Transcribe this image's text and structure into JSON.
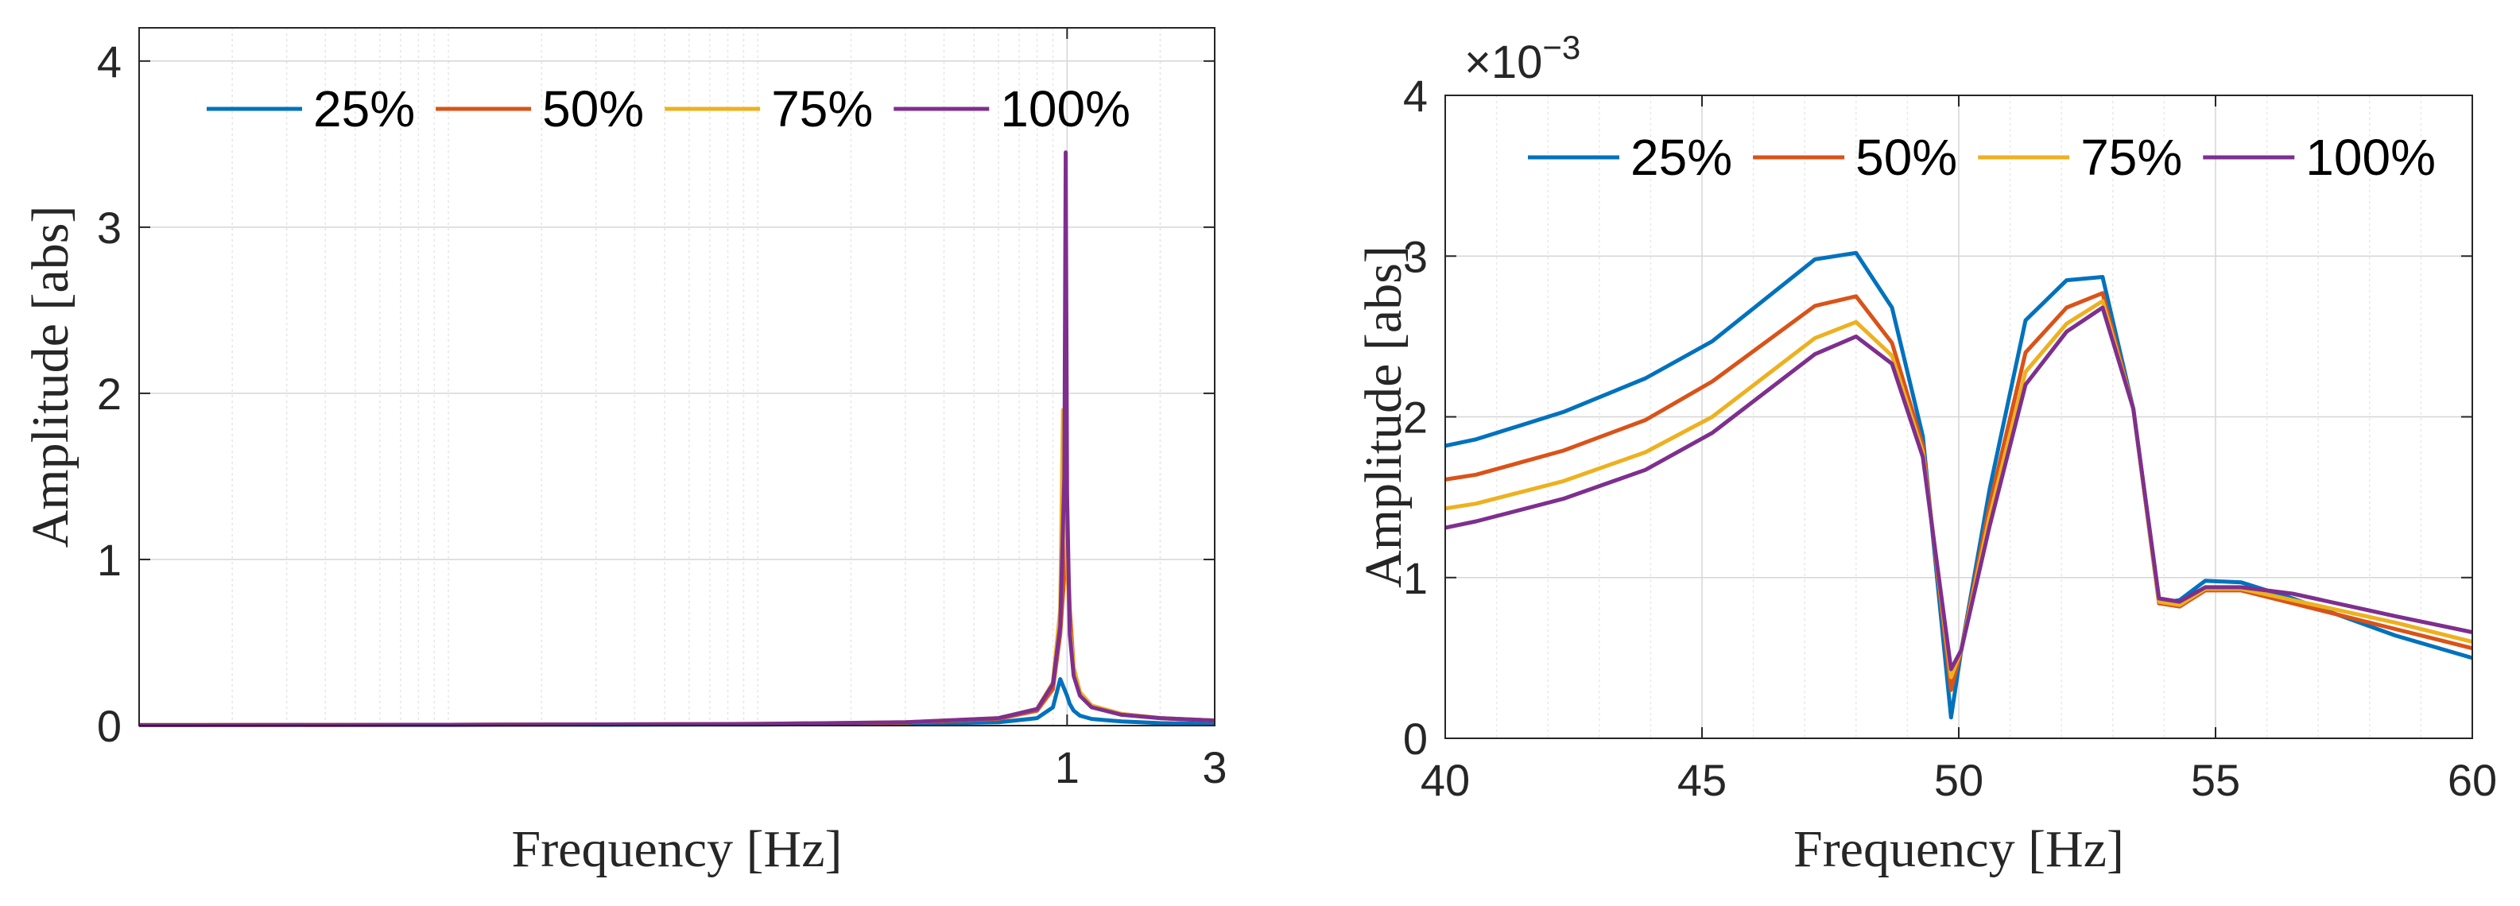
{
  "chart_data": [
    {
      "type": "line",
      "xscale": "log",
      "xlabel": "Frequency [Hz]",
      "ylabel": "Amplitude [abs]",
      "xlim": [
        0.001,
        3
      ],
      "ylim": [
        0,
        4.2
      ],
      "xticks": [
        1,
        3
      ],
      "xtick_labels": [
        "1",
        "3"
      ],
      "yticks": [
        0,
        1,
        2,
        3,
        4
      ],
      "ytick_labels": [
        "0",
        "1",
        "2",
        "3",
        "4"
      ],
      "grid": true,
      "legend_position": "top",
      "legend_orientation": "horizontal",
      "series": [
        {
          "name": "25%",
          "color": "#0072BD",
          "x": [
            0.001,
            0.01,
            0.1,
            0.3,
            0.6,
            0.8,
            0.9,
            0.95,
            1.0,
            1.02,
            1.05,
            1.1,
            1.2,
            1.5,
            2,
            3
          ],
          "y": [
            0.003,
            0.004,
            0.006,
            0.01,
            0.02,
            0.045,
            0.11,
            0.28,
            0.18,
            0.13,
            0.09,
            0.06,
            0.04,
            0.025,
            0.015,
            0.01
          ]
        },
        {
          "name": "50%",
          "color": "#D95319",
          "x": [
            0.001,
            0.01,
            0.1,
            0.3,
            0.6,
            0.8,
            0.9,
            0.95,
            1.0,
            1.02,
            1.05,
            1.1,
            1.2,
            1.5,
            2,
            3
          ],
          "y": [
            0.003,
            0.005,
            0.01,
            0.018,
            0.04,
            0.09,
            0.22,
            0.55,
            1.15,
            0.7,
            0.35,
            0.2,
            0.12,
            0.07,
            0.045,
            0.03
          ]
        },
        {
          "name": "75%",
          "color": "#EDB120",
          "x": [
            0.001,
            0.01,
            0.1,
            0.3,
            0.6,
            0.8,
            0.9,
            0.95,
            0.97,
            1.0,
            1.02,
            1.05,
            1.1,
            1.2,
            1.5,
            2,
            3
          ],
          "y": [
            0.003,
            0.005,
            0.01,
            0.02,
            0.045,
            0.1,
            0.26,
            0.7,
            1.9,
            1.0,
            0.6,
            0.35,
            0.2,
            0.12,
            0.07,
            0.045,
            0.03
          ]
        },
        {
          "name": "100%",
          "color": "#7E2F8E",
          "x": [
            0.001,
            0.01,
            0.1,
            0.3,
            0.6,
            0.8,
            0.9,
            0.95,
            0.98,
            0.99,
            1.0,
            1.02,
            1.05,
            1.1,
            1.2,
            1.5,
            2,
            3
          ],
          "y": [
            0.003,
            0.005,
            0.01,
            0.02,
            0.045,
            0.1,
            0.25,
            0.6,
            1.5,
            3.45,
            1.4,
            0.55,
            0.3,
            0.18,
            0.11,
            0.065,
            0.045,
            0.03
          ]
        }
      ]
    },
    {
      "type": "line",
      "xlabel": "Frequency [Hz]",
      "ylabel": "Amplitude [abs]",
      "y_scale_label": "×10",
      "y_scale_exponent": "−3",
      "xlim": [
        40,
        60
      ],
      "ylim": [
        0,
        4
      ],
      "xticks": [
        40,
        45,
        50,
        55,
        60
      ],
      "xtick_labels": [
        "40",
        "45",
        "50",
        "55",
        "60"
      ],
      "yticks": [
        0,
        1,
        2,
        3,
        4
      ],
      "ytick_labels": [
        "0",
        "1",
        "2",
        "3",
        "4"
      ],
      "grid": true,
      "legend_position": "top",
      "legend_orientation": "horizontal",
      "series": [
        {
          "name": "25%",
          "color": "#0072BD",
          "x": [
            40,
            40.6,
            42.3,
            43.9,
            45.2,
            47.2,
            48.0,
            48.7,
            49.3,
            49.85,
            50.05,
            50.6,
            51.3,
            52.1,
            52.8,
            53.4,
            53.9,
            54.3,
            54.8,
            55.5,
            56.5,
            58.5,
            60
          ],
          "y": [
            1.82,
            1.86,
            2.03,
            2.24,
            2.47,
            2.98,
            3.02,
            2.68,
            1.88,
            0.13,
            0.55,
            1.55,
            2.6,
            2.85,
            2.87,
            2.05,
            0.84,
            0.86,
            0.98,
            0.97,
            0.87,
            0.64,
            0.5
          ]
        },
        {
          "name": "50%",
          "color": "#D95319",
          "x": [
            40,
            40.6,
            42.3,
            43.9,
            45.2,
            47.2,
            48.0,
            48.7,
            49.3,
            49.85,
            50.05,
            50.6,
            51.3,
            52.1,
            52.8,
            53.4,
            53.9,
            54.3,
            54.8,
            55.5,
            56.5,
            58.5,
            60
          ],
          "y": [
            1.61,
            1.64,
            1.79,
            1.98,
            2.22,
            2.69,
            2.75,
            2.46,
            1.82,
            0.3,
            0.55,
            1.45,
            2.4,
            2.68,
            2.77,
            2.05,
            0.84,
            0.82,
            0.92,
            0.92,
            0.84,
            0.68,
            0.56
          ]
        },
        {
          "name": "75%",
          "color": "#EDB120",
          "x": [
            40,
            40.6,
            42.3,
            43.9,
            45.2,
            47.2,
            48.0,
            48.7,
            49.3,
            49.85,
            50.05,
            50.6,
            51.3,
            52.1,
            52.8,
            53.4,
            53.9,
            54.3,
            54.8,
            55.5,
            56.5,
            58.5,
            60
          ],
          "y": [
            1.43,
            1.46,
            1.6,
            1.78,
            2.0,
            2.49,
            2.59,
            2.38,
            1.78,
            0.38,
            0.55,
            1.38,
            2.28,
            2.58,
            2.72,
            2.05,
            0.85,
            0.83,
            0.93,
            0.93,
            0.86,
            0.72,
            0.6
          ]
        },
        {
          "name": "100%",
          "color": "#7E2F8E",
          "x": [
            40,
            40.6,
            42.3,
            43.9,
            45.2,
            47.2,
            48.0,
            48.7,
            49.3,
            49.85,
            50.05,
            50.6,
            51.3,
            52.1,
            52.8,
            53.4,
            53.9,
            54.3,
            54.8,
            55.5,
            56.5,
            58.5,
            60
          ],
          "y": [
            1.31,
            1.35,
            1.49,
            1.67,
            1.9,
            2.39,
            2.5,
            2.33,
            1.75,
            0.43,
            0.55,
            1.32,
            2.2,
            2.53,
            2.68,
            2.05,
            0.87,
            0.85,
            0.94,
            0.94,
            0.9,
            0.76,
            0.66
          ]
        }
      ]
    }
  ]
}
